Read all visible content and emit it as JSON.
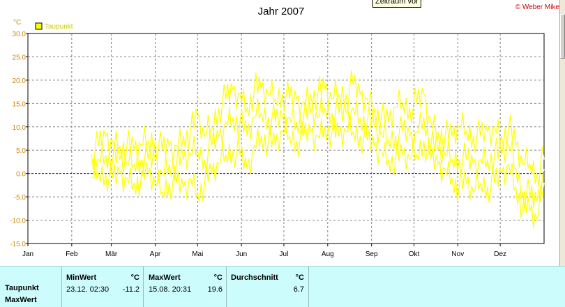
{
  "tooltip": "Zeitraum vor",
  "copyright": "© Weber Mike",
  "chart_data": {
    "type": "line",
    "title": "Jahr 2007",
    "ylabel": "°C",
    "xlabel": "",
    "ylim": [
      -15,
      30
    ],
    "xlim": [
      0,
      365
    ],
    "y_ticks": [
      "30.0",
      "25.0",
      "20.0",
      "15.0",
      "10.0",
      "5.0",
      "0.0",
      "-5.0",
      "-10.0",
      "-15.0"
    ],
    "y_tick_values": [
      30,
      25,
      20,
      15,
      10,
      5,
      0,
      -5,
      -10,
      -15
    ],
    "x_ticks": [
      "Jan",
      "Feb",
      "Mär",
      "Apr",
      "Mai",
      "Jun",
      "Jul",
      "Aug",
      "Sep",
      "Okt",
      "Nov",
      "Dez"
    ],
    "x_tick_days": [
      0,
      31,
      59,
      90,
      120,
      151,
      181,
      212,
      243,
      273,
      304,
      334
    ],
    "grid": true,
    "zero_line": true,
    "legend": "top-left",
    "colors": {
      "series": "#ffff00",
      "zero_line": "#0000c8",
      "grid": "#808080"
    },
    "series": [
      {
        "name": "Taupunkt",
        "x": [
          45,
          50,
          55,
          60,
          65,
          70,
          75,
          80,
          85,
          90,
          95,
          100,
          105,
          110,
          115,
          120,
          125,
          130,
          135,
          140,
          145,
          150,
          155,
          160,
          165,
          170,
          175,
          180,
          185,
          190,
          195,
          200,
          205,
          210,
          215,
          220,
          225,
          230,
          235,
          240,
          245,
          250,
          255,
          260,
          265,
          270,
          275,
          280,
          285,
          290,
          295,
          300,
          305,
          310,
          315,
          320,
          325,
          330,
          335,
          340,
          345,
          350,
          355,
          360,
          365
        ],
        "min": [
          -1,
          0,
          0,
          -1,
          0,
          -1,
          -2,
          -1,
          0,
          -2,
          -4,
          -2,
          -2,
          -3,
          -1,
          -4,
          -2,
          0,
          2,
          4,
          5,
          4,
          1,
          6,
          8,
          7,
          6,
          9,
          8,
          7,
          8,
          9,
          8,
          10,
          9,
          8,
          9,
          9,
          8,
          7,
          6,
          5,
          3,
          3,
          4,
          3,
          4,
          7,
          3,
          2,
          1,
          -1,
          -3,
          -2,
          -4,
          -2,
          -3,
          -2,
          0,
          2,
          -3,
          -7,
          -8,
          -10,
          -2
        ],
        "max": [
          4,
          6,
          8,
          7,
          6,
          6,
          5,
          6,
          7,
          7,
          5,
          6,
          6,
          8,
          9,
          12,
          8,
          10,
          14,
          16,
          18,
          17,
          14,
          18,
          18,
          17,
          16,
          17,
          16,
          16,
          15,
          17,
          17,
          18,
          16,
          17,
          17,
          19,
          17,
          16,
          14,
          12,
          11,
          14,
          15,
          14,
          15,
          17,
          11,
          9,
          8,
          8,
          10,
          9,
          8,
          8,
          9,
          10,
          8,
          10,
          6,
          2,
          2,
          0,
          3
        ],
        "avg": [
          2,
          3,
          4,
          3,
          3,
          2,
          2,
          3,
          3,
          3,
          0,
          2,
          2,
          3,
          4,
          5,
          3,
          6,
          8,
          11,
          12,
          11,
          8,
          12,
          13,
          12,
          11,
          12,
          12,
          11,
          12,
          13,
          12,
          14,
          13,
          13,
          13,
          14,
          12,
          11,
          10,
          8,
          7,
          8,
          9,
          8,
          9,
          12,
          6,
          5,
          4,
          3,
          3,
          3,
          2,
          3,
          3,
          4,
          4,
          6,
          1,
          -4,
          -5,
          -6,
          1
        ]
      }
    ]
  },
  "stats": {
    "row_labels": [
      "Taupunkt",
      "MaxWert"
    ],
    "minwert": {
      "header": "MinWert",
      "unit": "°C",
      "datetime": "23.12.  02:30",
      "value": "-11.2"
    },
    "maxwert": {
      "header": "MaxWert",
      "unit": "°C",
      "datetime": "15.08.  20:31",
      "value": "19.6"
    },
    "durchschnitt": {
      "header": "Durchschnitt",
      "unit": "°C",
      "value": "6.7"
    }
  }
}
